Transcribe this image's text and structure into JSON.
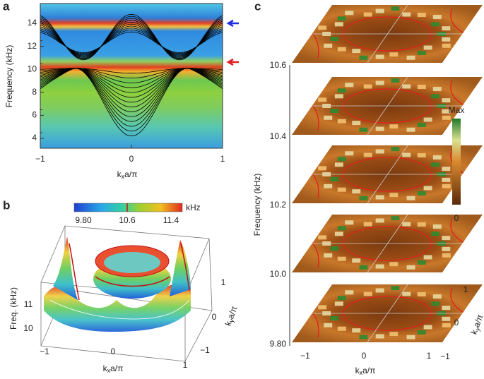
{
  "panels": [
    {
      "label": "a",
      "ylabel": "Frequency (kHz)",
      "yticks": [
        "4",
        "6",
        "8",
        "10",
        "12",
        "14"
      ],
      "xticks": [
        "−1",
        "0",
        "1"
      ],
      "xlabel": [
        "k",
        "x",
        "a/π"
      ]
    },
    {
      "label": "b",
      "colorbar_ticks": [
        "9.80",
        "10.6",
        "11.4"
      ],
      "colorbar_unit": "kHz",
      "zlabel": "Freq. (kHz)",
      "zticks": [
        "10",
        "11"
      ],
      "xticks": [
        "−1",
        "0",
        "1"
      ],
      "xlabel": [
        "k",
        "x",
        "a/π"
      ],
      "yticks": [
        "−1",
        "0",
        "1"
      ],
      "ylabel": [
        "k",
        "y",
        "a/π"
      ]
    },
    {
      "label": "c",
      "zlabel": "Frequency (kHz)",
      "zticks": [
        "9.80",
        "10.0",
        "10.2",
        "10.4",
        "10.6"
      ],
      "colorbar_max": "Max",
      "colorbar_min": "0",
      "xticks": [
        "−1",
        "0",
        "1"
      ],
      "xlabel": [
        "k",
        "x",
        "a/π"
      ],
      "yticks": [
        "−1",
        "0",
        "1"
      ],
      "ylabel": [
        "k",
        "y",
        "a/π"
      ]
    }
  ]
}
